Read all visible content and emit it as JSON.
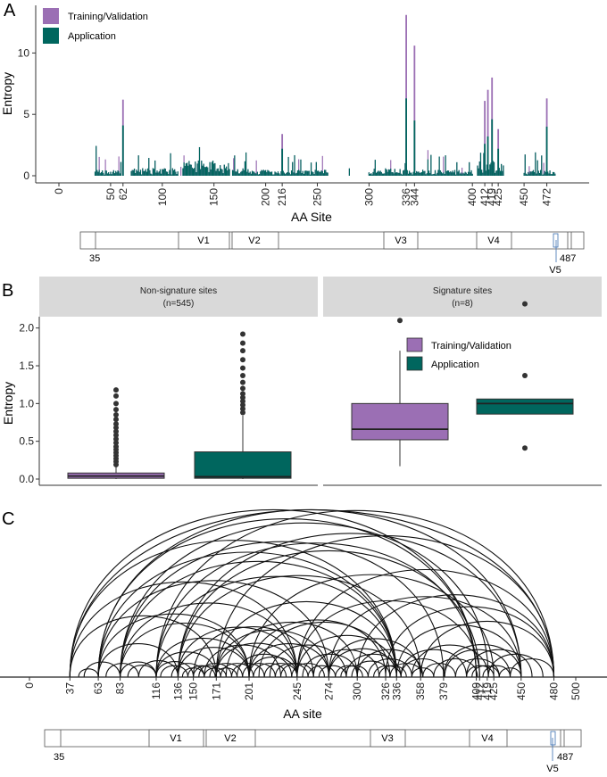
{
  "colors": {
    "training": "#9b6fb4",
    "application": "#00665e",
    "signature": "#e01010",
    "nonsignature": "#b3b3b3",
    "strip": "#d9d9d9"
  },
  "legend": {
    "training": "Training/Validation",
    "application": "Application"
  },
  "panel_labels": {
    "a": "A",
    "b": "B",
    "c": "C"
  },
  "schematic": {
    "start": "35",
    "end": "487",
    "regions": [
      "V1",
      "V2",
      "V3",
      "V4",
      "V5"
    ]
  },
  "chart_data": [
    {
      "id": "A",
      "type": "bar",
      "title": "",
      "xlabel": "AA Site",
      "ylabel": "Entropy",
      "xlim": [
        0,
        500
      ],
      "ylim": [
        0,
        13.3
      ],
      "y_ticks": [
        "0",
        "5",
        "10"
      ],
      "x_ticks_gray": [
        "0",
        "50",
        "100",
        "150",
        "200",
        "250",
        "300",
        "400",
        "450"
      ],
      "x_ticks_red": [
        "62",
        "216",
        "336",
        "344",
        "412",
        "419",
        "425",
        "472"
      ],
      "signature_sites": [
        62,
        216,
        336,
        344,
        412,
        419,
        425,
        472
      ],
      "series": [
        {
          "name": "Training/Validation",
          "sites": [
            62,
            216,
            336,
            344,
            412,
            415,
            419,
            425,
            472
          ],
          "values": [
            6.2,
            3.4,
            13.1,
            10.6,
            6.1,
            7.0,
            8.0,
            3.8,
            6.3
          ]
        },
        {
          "name": "Application",
          "sites": [
            62,
            216,
            336,
            344,
            412,
            415,
            419,
            425,
            472
          ],
          "values": [
            4.1,
            2.2,
            6.3,
            4.5,
            2.6,
            3.2,
            4.6,
            2.2,
            4.0
          ]
        }
      ]
    },
    {
      "id": "B",
      "type": "box",
      "ylabel": "Entropy",
      "ylim": [
        0,
        2.15
      ],
      "y_ticks": [
        "0.0",
        "0.5",
        "1.0",
        "1.5",
        "2.0"
      ],
      "facets": [
        {
          "title": "Non-signature sites",
          "subtitle": "(n=545)",
          "boxes": [
            {
              "name": "Training/Validation",
              "min": 0.0,
              "q1": 0.01,
              "median": 0.04,
              "q3": 0.08,
              "max": 0.16,
              "outliers": [
                0.19,
                0.23,
                0.27,
                0.31,
                0.35,
                0.39,
                0.43,
                0.48,
                0.53,
                0.58,
                0.63,
                0.68,
                0.73,
                0.79,
                0.85,
                0.92,
                1.0,
                1.1,
                1.18
              ]
            },
            {
              "name": "Application",
              "min": 0.0,
              "q1": 0.01,
              "median": 0.03,
              "q3": 0.36,
              "max": 0.84,
              "outliers": [
                0.88,
                0.93,
                0.98,
                1.03,
                1.08,
                1.13,
                1.2,
                1.28,
                1.37,
                1.47,
                1.58,
                1.7,
                1.8,
                1.92
              ]
            }
          ]
        },
        {
          "title": "Signature sites",
          "subtitle": "(n=8)",
          "boxes": [
            {
              "name": "Training/Validation",
              "min": 0.17,
              "q1": 0.52,
              "median": 0.66,
              "q3": 1.0,
              "max": 1.7,
              "outliers": [
                2.1
              ]
            },
            {
              "name": "Application",
              "min": 0.86,
              "q1": 0.86,
              "median": 1.0,
              "q3": 1.06,
              "max": 1.06,
              "outliers": [
                0.41,
                1.37,
                2.32
              ]
            }
          ]
        }
      ]
    },
    {
      "id": "C",
      "type": "arc",
      "xlabel": "AA site",
      "xlim": [
        0,
        500
      ],
      "x_ticks_gray": [
        "0",
        "150",
        "300",
        "500"
      ],
      "x_ticks_black": [
        "37",
        "63",
        "83",
        "116",
        "136",
        "171",
        "201",
        "245",
        "274",
        "326",
        "358",
        "379",
        "409",
        "450",
        "480"
      ],
      "x_ticks_red": [
        "336",
        "412",
        "419",
        "425"
      ],
      "arcs": [
        [
          37,
          480
        ],
        [
          63,
          450
        ],
        [
          63,
          409
        ],
        [
          83,
          420
        ],
        [
          83,
          379
        ],
        [
          116,
          480
        ],
        [
          116,
          409
        ],
        [
          136,
          450
        ],
        [
          136,
          358
        ],
        [
          171,
          480
        ],
        [
          171,
          336
        ],
        [
          201,
          425
        ],
        [
          201,
          326
        ],
        [
          245,
          480
        ],
        [
          245,
          412
        ],
        [
          274,
          450
        ],
        [
          274,
          358
        ],
        [
          300,
          480
        ],
        [
          326,
          480
        ],
        [
          336,
          450
        ],
        [
          358,
          480
        ],
        [
          379,
          450
        ],
        [
          37,
          245
        ],
        [
          37,
          171
        ],
        [
          63,
          201
        ],
        [
          63,
          136
        ],
        [
          83,
          245
        ],
        [
          83,
          116
        ],
        [
          116,
          201
        ],
        [
          116,
          171
        ],
        [
          136,
          245
        ],
        [
          136,
          201
        ],
        [
          171,
          274
        ],
        [
          171,
          245
        ],
        [
          201,
          274
        ],
        [
          201,
          245
        ],
        [
          245,
          336
        ],
        [
          274,
          336
        ],
        [
          37,
          336
        ],
        [
          63,
          336
        ],
        [
          83,
          336
        ],
        [
          116,
          336
        ],
        [
          136,
          412
        ],
        [
          37,
          409
        ],
        [
          63,
          274
        ],
        [
          83,
          201
        ],
        [
          150,
          260
        ],
        [
          160,
          230
        ],
        [
          180,
          300
        ],
        [
          190,
          240
        ],
        [
          210,
          330
        ],
        [
          220,
          290
        ],
        [
          230,
          260
        ],
        [
          250,
          300
        ],
        [
          260,
          320
        ],
        [
          290,
          340
        ],
        [
          300,
          360
        ],
        [
          310,
          350
        ],
        [
          340,
          400
        ],
        [
          350,
          420
        ],
        [
          360,
          390
        ],
        [
          380,
          440
        ],
        [
          390,
          430
        ],
        [
          400,
          460
        ],
        [
          420,
          470
        ],
        [
          430,
          450
        ],
        [
          440,
          480
        ],
        [
          150,
          175
        ],
        [
          155,
          185
        ],
        [
          165,
          195
        ],
        [
          175,
          205
        ],
        [
          185,
          215
        ],
        [
          195,
          225
        ],
        [
          205,
          235
        ],
        [
          215,
          245
        ],
        [
          225,
          255
        ],
        [
          140,
          160
        ],
        [
          145,
          170
        ],
        [
          160,
          180
        ],
        [
          170,
          190
        ],
        [
          330,
          360
        ],
        [
          340,
          380
        ],
        [
          350,
          370
        ],
        [
          370,
          410
        ],
        [
          400,
          425
        ],
        [
          405,
          430
        ],
        [
          415,
          440
        ],
        [
          100,
          136
        ],
        [
          90,
          116
        ],
        [
          70,
          100
        ],
        [
          50,
          83
        ],
        [
          45,
          63
        ],
        [
          116,
          150
        ],
        [
          120,
          145
        ],
        [
          130,
          160
        ],
        [
          240,
          270
        ],
        [
          255,
          280
        ],
        [
          265,
          290
        ],
        [
          280,
          305
        ],
        [
          285,
          310
        ],
        [
          295,
          330
        ],
        [
          315,
          340
        ],
        [
          320,
          345
        ]
      ]
    }
  ]
}
